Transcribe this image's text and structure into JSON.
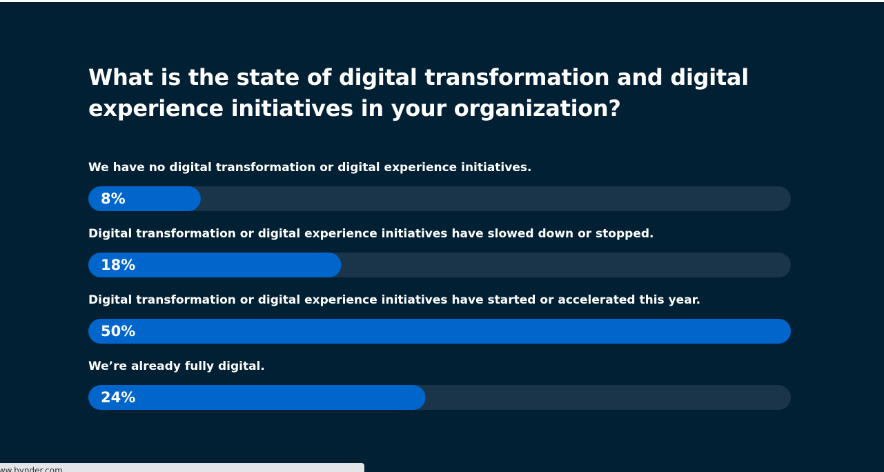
{
  "chart_data": {
    "type": "bar",
    "orientation": "horizontal",
    "title": "What is the state of digital transformation and digital experience initiatives in your organization?",
    "categories": [
      "We have no digital transformation or digital experience initiatives.",
      "Digital transformation or digital experience initiatives have slowed down or stopped.",
      "Digital transformation or digital experience initiatives have started or accelerated this year.",
      "We’re already fully digital."
    ],
    "values": [
      8,
      18,
      50,
      24
    ],
    "value_labels": [
      "8%",
      "18%",
      "50%",
      "24%"
    ],
    "color": "#0066cc",
    "xlim": [
      0,
      50
    ]
  },
  "status_bar": {
    "url": "www.bynder.com"
  }
}
